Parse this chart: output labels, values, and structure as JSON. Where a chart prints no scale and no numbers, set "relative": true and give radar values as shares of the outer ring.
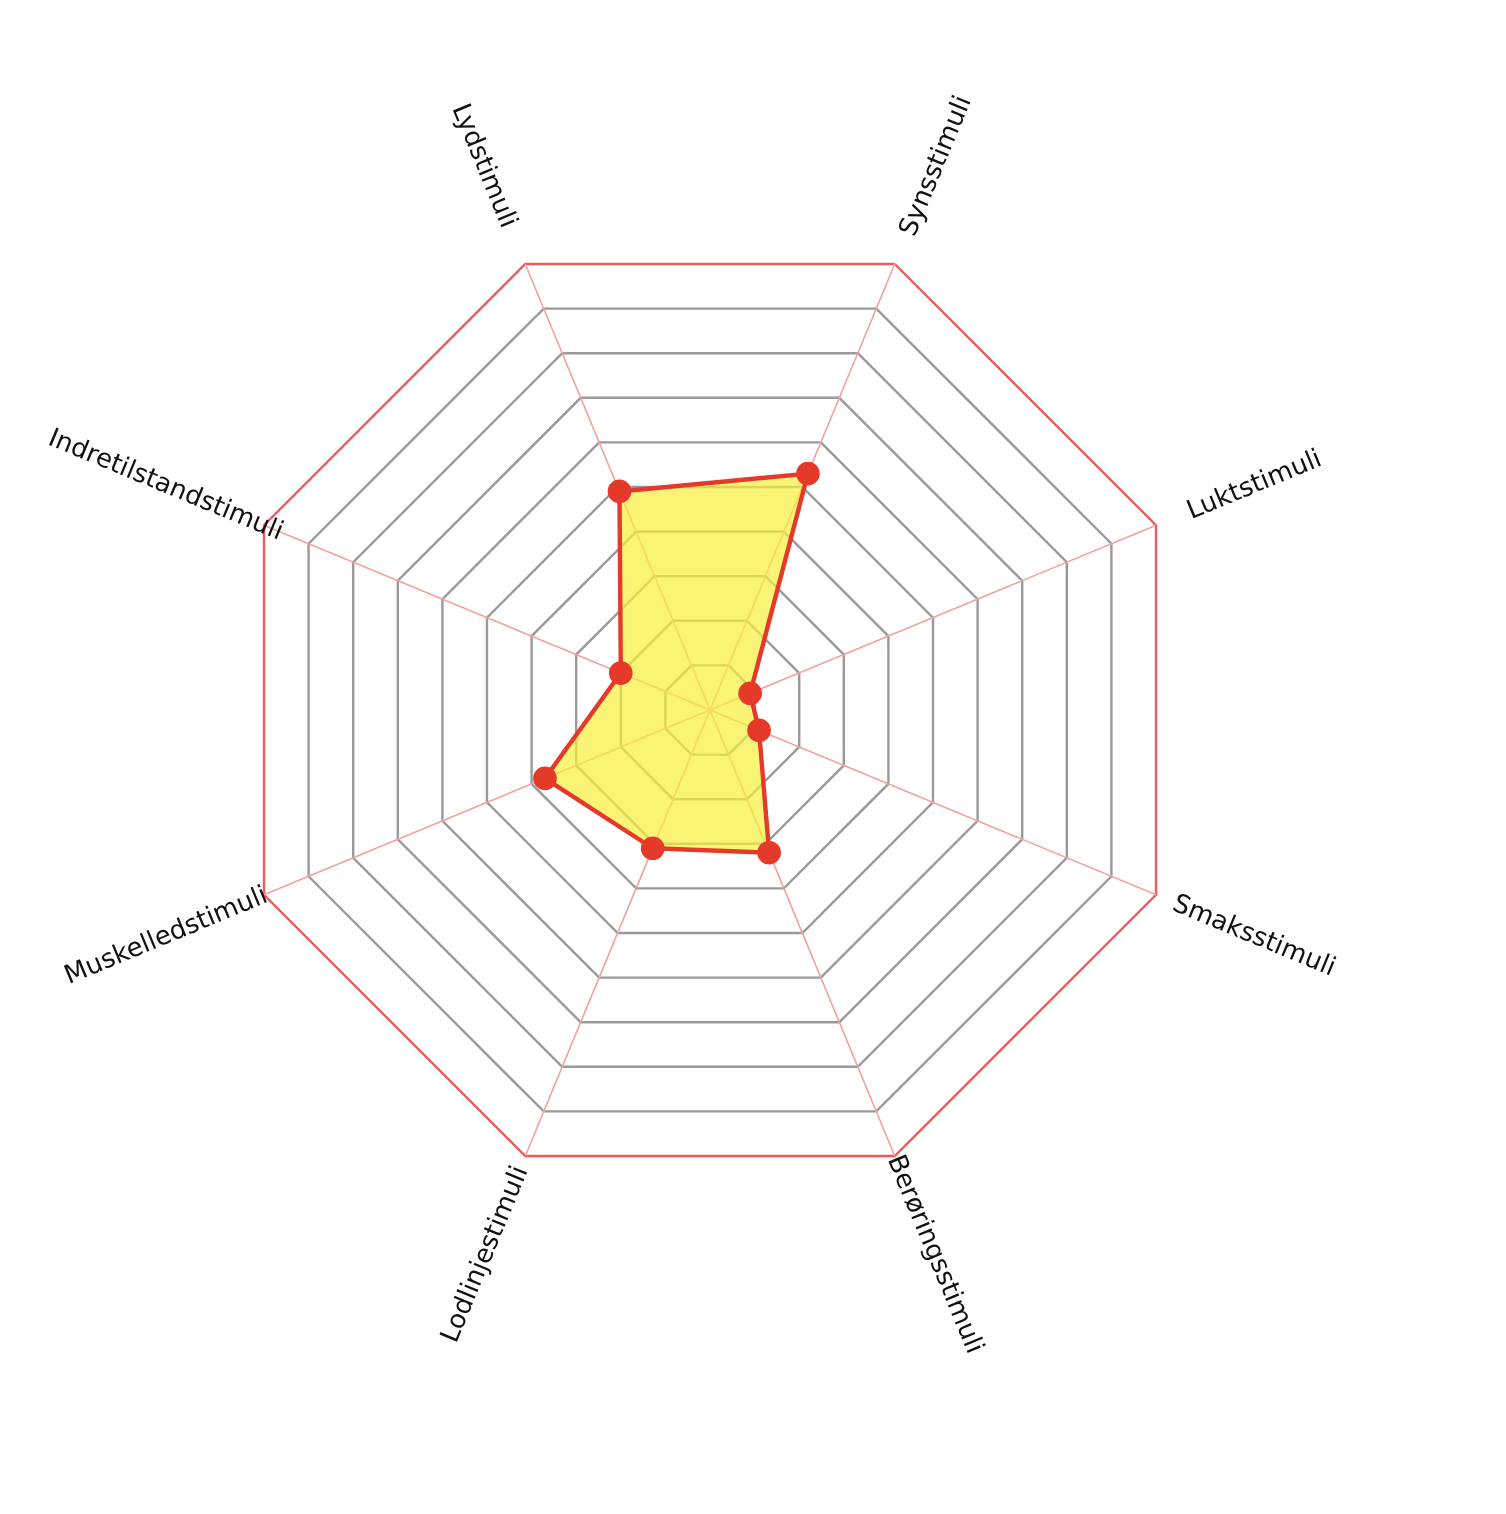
{
  "chart_data": {
    "type": "radar",
    "relative": true,
    "grid": true,
    "marker": "circle",
    "categories": [
      "Synsstimuli",
      "Luktstimuli",
      "Smaksstimuli",
      "Berøringsstimuli",
      "Lodlinjestimuli",
      "Muskelledstimuli",
      "Indretilstandstimuli",
      "Lydstimuli"
    ],
    "series": [
      {
        "color": "#e53a2a",
        "values": [
          0.53,
          0.09,
          0.11,
          0.32,
          0.31,
          0.37,
          0.2,
          0.49
        ]
      }
    ]
  }
}
